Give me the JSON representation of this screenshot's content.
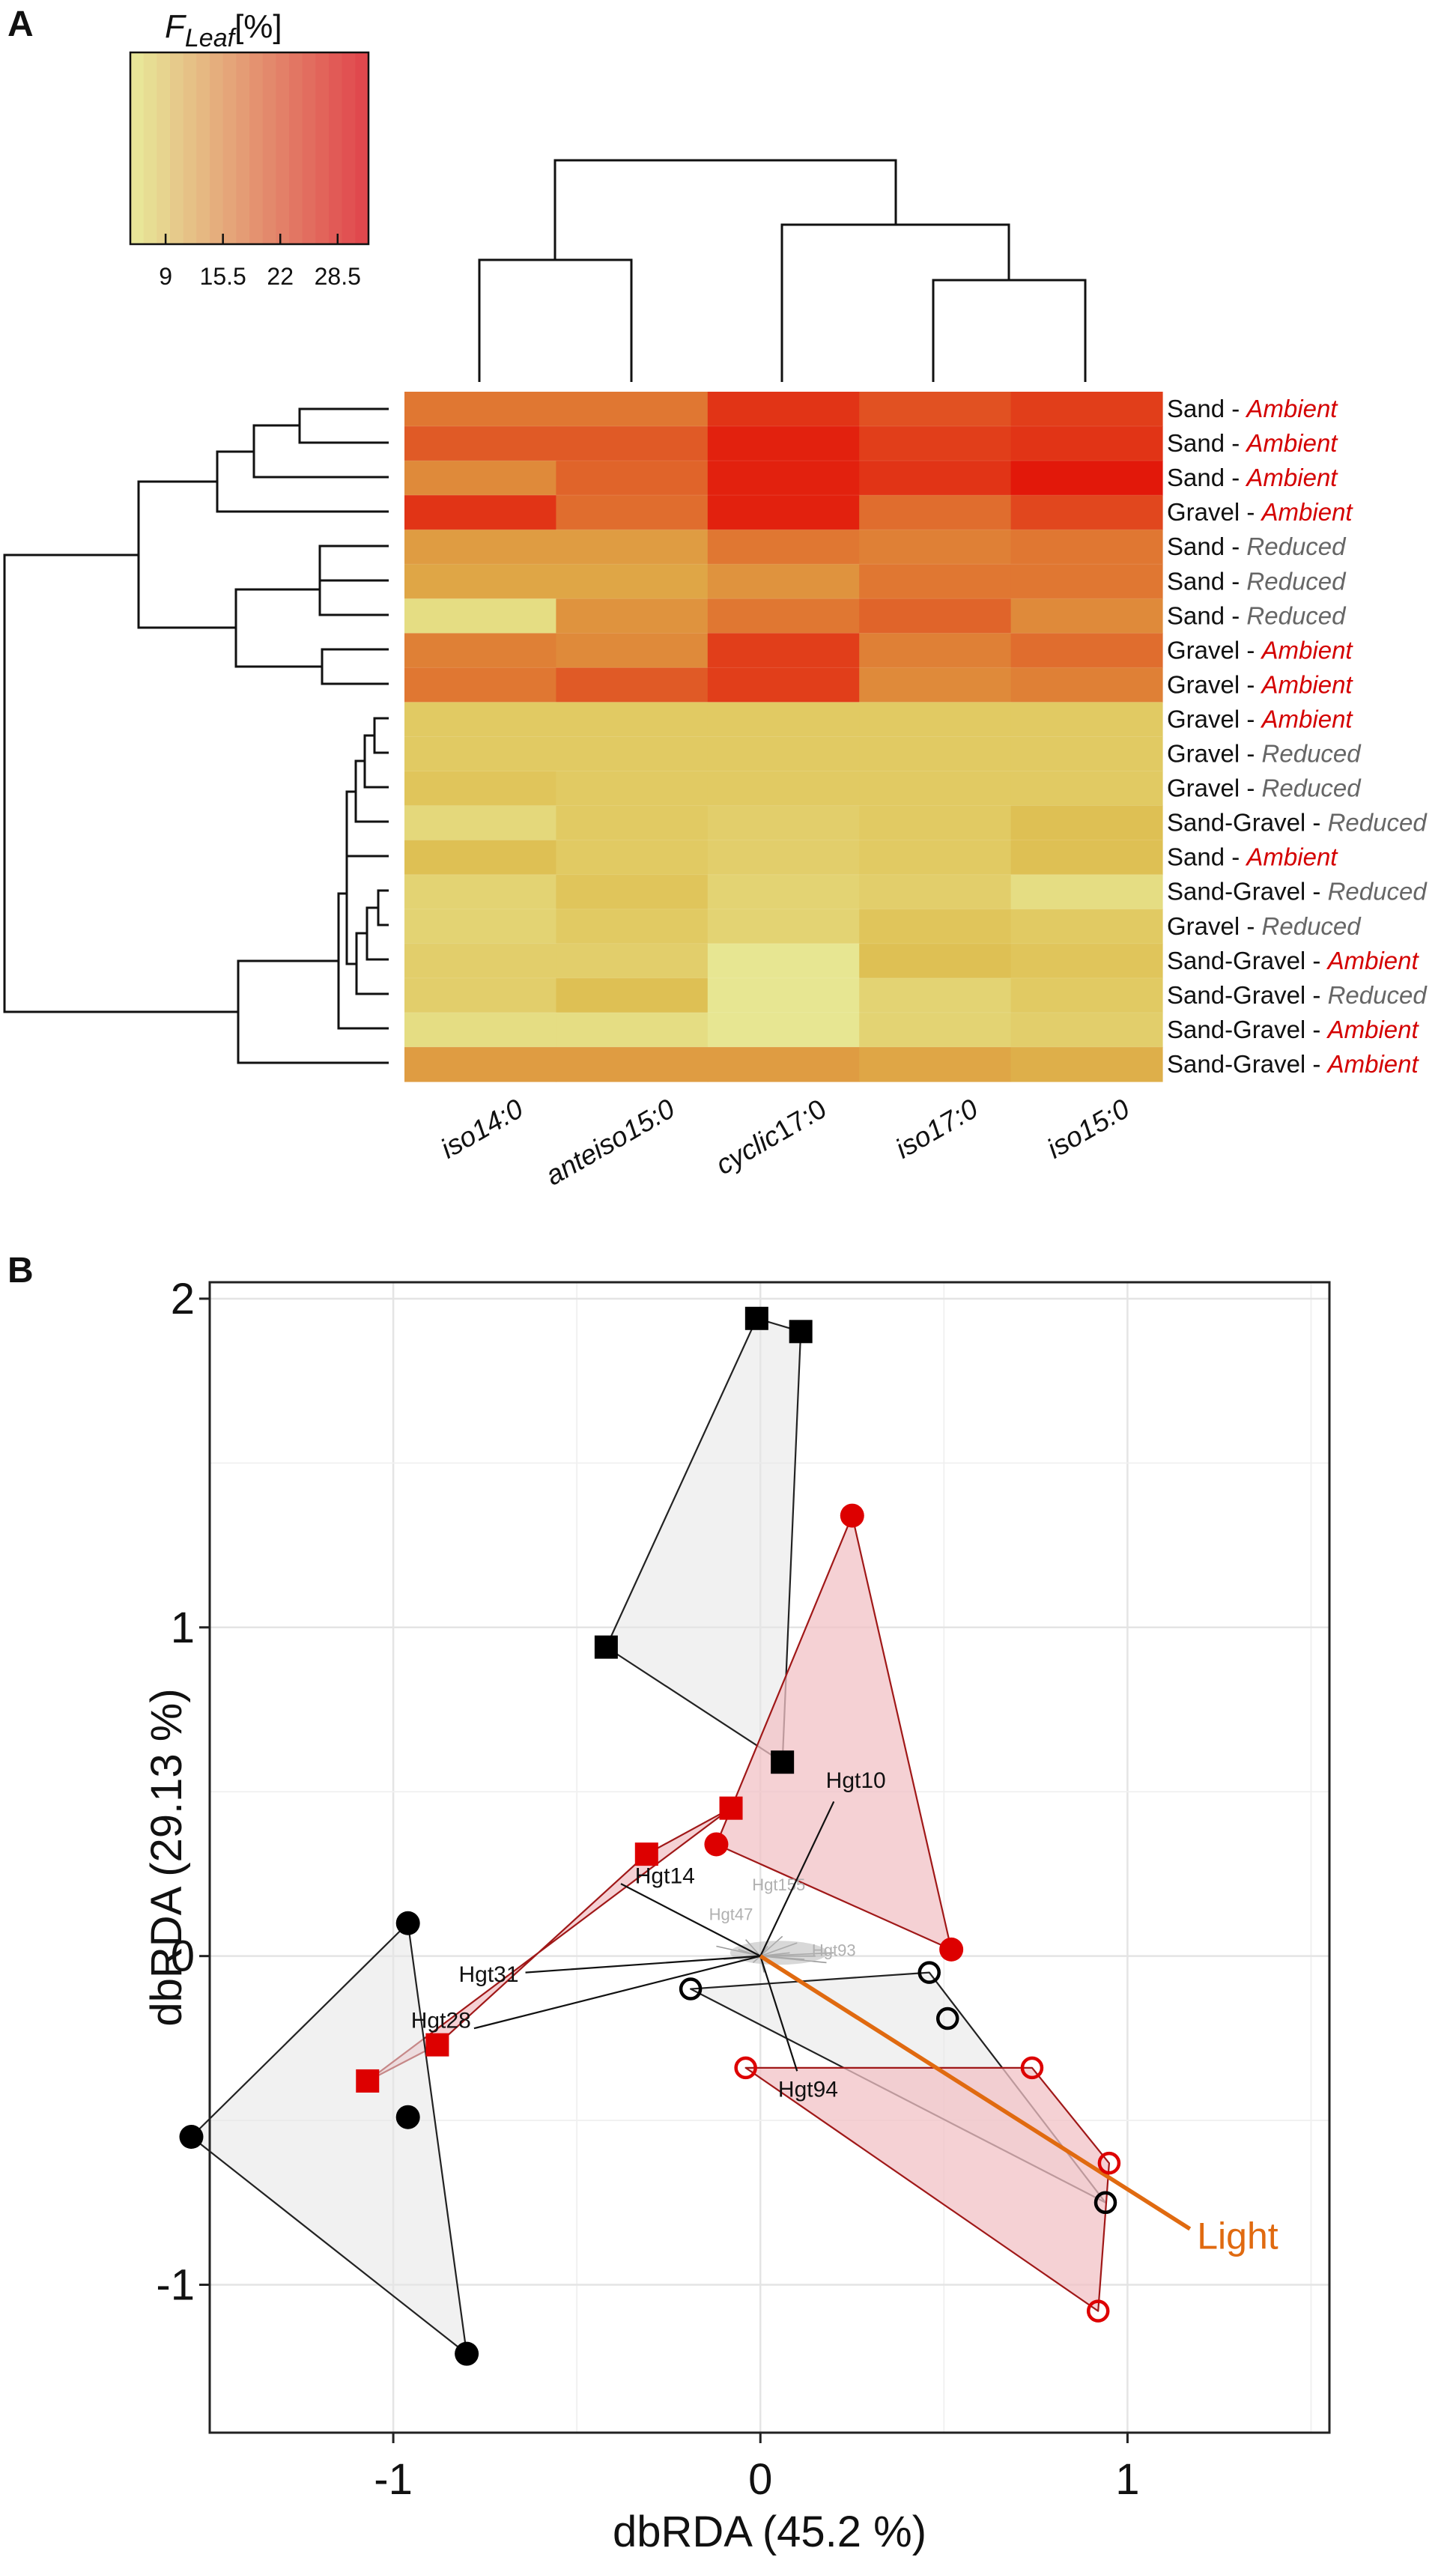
{
  "panel_labels": {
    "a": "A",
    "b": "B"
  },
  "colors": {
    "ambient": "#d40000",
    "reduced": "#666666",
    "vector": "#e06a10",
    "hull_gray": "#e6e6e6",
    "hull_red": "#f2c2c6",
    "edge_gray": "#222222",
    "edge_red": "#a01818",
    "marker_red": "#dd0000"
  },
  "chart_data": [
    {
      "type": "heatmap",
      "legend": {
        "title_main": "F",
        "title_sub": "Leaf",
        "title_unit": "[%]",
        "ticks": [
          9,
          15.5,
          22,
          28.5
        ],
        "tick_labels": [
          "9",
          "15.5",
          "22",
          "28.5"
        ],
        "range": [
          5,
          32
        ],
        "color_low": "#e8eb9a",
        "color_high": "#e0434b"
      },
      "columns": [
        "iso14:0",
        "anteiso15:0",
        "cyclic17:0",
        "iso17:0",
        "iso15:0"
      ],
      "column_label_parts": [
        [
          "iso14:0",
          ""
        ],
        [
          "anteiso15:0",
          ""
        ],
        [
          "cyclic",
          "17:0"
        ],
        [
          "iso17:0",
          ""
        ],
        [
          "iso15:0",
          ""
        ]
      ],
      "rows": [
        {
          "substrate": "Sand",
          "sep": " - ",
          "light": "Ambient"
        },
        {
          "substrate": "Sand",
          "sep": " - ",
          "light": "Ambient"
        },
        {
          "substrate": "Sand",
          "sep": " - ",
          "light": "Ambient"
        },
        {
          "substrate": "Gravel",
          "sep": " - ",
          "light": "Ambient"
        },
        {
          "substrate": "Sand",
          "sep": " - ",
          "light": "Reduced"
        },
        {
          "substrate": "Sand",
          "sep": " - ",
          "light": "Reduced"
        },
        {
          "substrate": "Sand",
          "sep": " - ",
          "light": "Reduced"
        },
        {
          "substrate": "Gravel",
          "sep": " - ",
          "light": "Ambient"
        },
        {
          "substrate": "Gravel",
          "sep": " - ",
          "light": "Ambient"
        },
        {
          "substrate": "Gravel",
          "sep": " - ",
          "light": "Ambient"
        },
        {
          "substrate": "Gravel",
          "sep": " - ",
          "light": "Reduced"
        },
        {
          "substrate": "Gravel",
          "sep": " - ",
          "light": "Reduced"
        },
        {
          "substrate": "Sand-Gravel",
          "sep": " - ",
          "light": "Reduced"
        },
        {
          "substrate": "Sand",
          "sep": " - ",
          "light": "Ambient"
        },
        {
          "substrate": "Sand-Gravel",
          "sep": " - ",
          "light": "Reduced"
        },
        {
          "substrate": "Gravel",
          "sep": " - ",
          "light": "Reduced"
        },
        {
          "substrate": "Sand-Gravel",
          "sep": " - ",
          "light": "Ambient"
        },
        {
          "substrate": "Sand-Gravel",
          "sep": " - ",
          "light": "Reduced"
        },
        {
          "substrate": "Sand-Gravel",
          "sep": " - ",
          "light": "Ambient"
        },
        {
          "substrate": "Sand-Gravel",
          "sep": " - ",
          "light": "Ambient"
        }
      ],
      "values": [
        [
          22,
          22,
          29,
          26,
          28
        ],
        [
          25,
          25,
          31,
          28,
          29
        ],
        [
          20,
          24,
          31,
          29,
          32
        ],
        [
          29,
          23,
          31,
          23,
          27
        ],
        [
          18,
          18,
          22,
          21,
          22
        ],
        [
          17,
          17,
          19,
          22,
          22
        ],
        [
          8,
          19,
          22,
          24,
          20
        ],
        [
          21,
          20,
          28,
          21,
          23
        ],
        [
          22,
          25,
          28,
          20,
          21
        ],
        [
          12,
          12,
          12,
          12,
          12
        ],
        [
          12,
          12,
          12,
          12,
          12
        ],
        [
          13,
          12,
          12,
          12,
          12
        ],
        [
          9,
          12,
          11,
          12,
          14
        ],
        [
          14,
          12,
          11,
          12,
          14
        ],
        [
          10,
          13,
          10,
          11,
          8
        ],
        [
          10,
          12,
          10,
          13,
          12
        ],
        [
          11,
          11,
          6,
          14,
          13
        ],
        [
          11,
          14,
          6,
          10,
          12
        ],
        [
          8,
          8,
          6,
          10,
          11
        ],
        [
          18,
          18,
          18,
          17,
          16
        ]
      ]
    },
    {
      "type": "scatter",
      "xlabel": "dbRDA (45.2 %)",
      "ylabel": "dbRDA (29.13 %)",
      "xlim": [
        -1.5,
        1.55
      ],
      "ylim": [
        -1.45,
        2.05
      ],
      "xticks": [
        -1,
        0,
        1
      ],
      "xtick_labels": [
        "-1",
        "0",
        "1"
      ],
      "yticks": [
        -1,
        0,
        1,
        2
      ],
      "ytick_labels": [
        "-1",
        "0",
        "1",
        "2"
      ],
      "groups": [
        {
          "name": "Gravel - Reduced",
          "shape": "square",
          "fill": "black",
          "hull": [
            [
              -0.01,
              1.94
            ],
            [
              0.11,
              1.9
            ],
            [
              0.06,
              0.59
            ],
            [
              -0.42,
              0.94
            ]
          ],
          "points": [
            [
              -0.01,
              1.94
            ],
            [
              0.11,
              1.9
            ],
            [
              -0.42,
              0.94
            ],
            [
              0.06,
              0.59
            ]
          ]
        },
        {
          "name": "Gravel - Ambient",
          "shape": "square",
          "fill": "red",
          "hull": [
            [
              -1.07,
              -0.38
            ],
            [
              -0.88,
              -0.27
            ],
            [
              -0.31,
              0.31
            ],
            [
              -0.08,
              0.45
            ]
          ],
          "points": [
            [
              -0.08,
              0.45
            ],
            [
              -0.31,
              0.31
            ],
            [
              -0.88,
              -0.27
            ],
            [
              -1.07,
              -0.38
            ]
          ]
        },
        {
          "name": "Sand - Ambient",
          "shape": "circle",
          "fill": "red",
          "hull": [
            [
              0.25,
              1.34
            ],
            [
              0.52,
              0.02
            ],
            [
              -0.12,
              0.34
            ]
          ],
          "points": [
            [
              0.25,
              1.34
            ],
            [
              -0.12,
              0.34
            ],
            [
              0.52,
              0.02
            ]
          ]
        },
        {
          "name": "Sand - Reduced",
          "shape": "circle",
          "fill": "black",
          "hull": [
            [
              -0.96,
              0.1
            ],
            [
              -0.8,
              -1.21
            ],
            [
              -1.55,
              -0.55
            ]
          ],
          "points": [
            [
              -0.96,
              0.1
            ],
            [
              -0.96,
              -0.49
            ],
            [
              -1.55,
              -0.55
            ],
            [
              -0.8,
              -1.21
            ]
          ]
        },
        {
          "name": "Sand-Gravel - Reduced",
          "shape": "circle",
          "fill": "open-black",
          "hull": [
            [
              -0.19,
              -0.1
            ],
            [
              0.46,
              -0.05
            ],
            [
              0.94,
              -0.75
            ]
          ],
          "points": [
            [
              -0.19,
              -0.1
            ],
            [
              0.46,
              -0.05
            ],
            [
              0.51,
              -0.19
            ],
            [
              0.94,
              -0.75
            ]
          ]
        },
        {
          "name": "Sand-Gravel - Ambient",
          "shape": "circle",
          "fill": "open-red",
          "hull": [
            [
              -0.04,
              -0.34
            ],
            [
              0.74,
              -0.34
            ],
            [
              0.95,
              -0.63
            ],
            [
              0.92,
              -1.08
            ]
          ],
          "points": [
            [
              -0.04,
              -0.34
            ],
            [
              0.74,
              -0.34
            ],
            [
              0.95,
              -0.63
            ],
            [
              0.92,
              -1.08
            ]
          ]
        }
      ],
      "species_vectors": [
        {
          "name": "Hgt10",
          "end": [
            0.2,
            0.47
          ],
          "label_pos": [
            0.26,
            0.53
          ]
        },
        {
          "name": "Hgt14",
          "end": [
            -0.38,
            0.22
          ],
          "label_pos": [
            -0.26,
            0.24
          ]
        },
        {
          "name": "Hgt31",
          "end": [
            -0.64,
            -0.05
          ],
          "label_pos": [
            -0.74,
            -0.06
          ]
        },
        {
          "name": "Hgt28",
          "end": [
            -0.78,
            -0.22
          ],
          "label_pos": [
            -0.87,
            -0.2
          ]
        },
        {
          "name": "Hgt94",
          "end": [
            0.1,
            -0.35
          ],
          "label_pos": [
            0.13,
            -0.41
          ]
        }
      ],
      "minor_labels": [
        "Hgt155",
        "Hgt47",
        "Hgt93"
      ],
      "env_vector": {
        "name": "Light",
        "end": [
          1.17,
          -0.83
        ],
        "label_pos": [
          1.3,
          -0.86
        ]
      }
    }
  ]
}
